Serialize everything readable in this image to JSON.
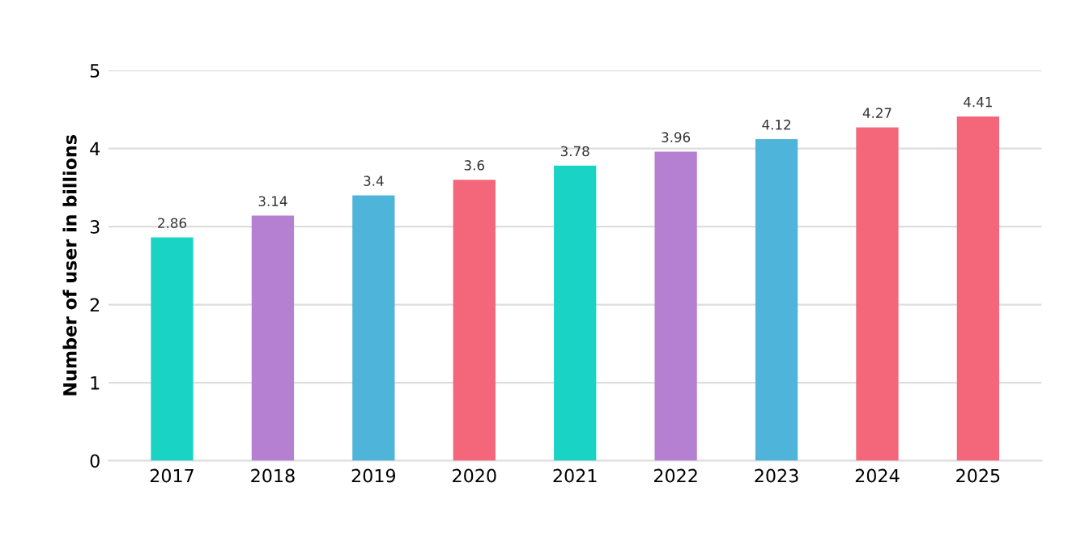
{
  "chart_data": {
    "type": "bar",
    "ylabel": "Number of user in billions",
    "categories": [
      "2017",
      "2018",
      "2019",
      "2020",
      "2021",
      "2022",
      "2023",
      "2024",
      "2025"
    ],
    "values": [
      2.86,
      3.14,
      3.4,
      3.6,
      3.78,
      3.96,
      4.12,
      4.27,
      4.41
    ],
    "colors": [
      "#19d3c5",
      "#b57fd2",
      "#4fb4d9",
      "#f4677a",
      "#19d3c5",
      "#b57fd2",
      "#4fb4d9",
      "#f4677a",
      "#f4677a"
    ],
    "ylim": [
      0,
      5
    ],
    "yticks": [
      0,
      1,
      2,
      3,
      4,
      5
    ],
    "grid": "y",
    "data_labels": true
  }
}
